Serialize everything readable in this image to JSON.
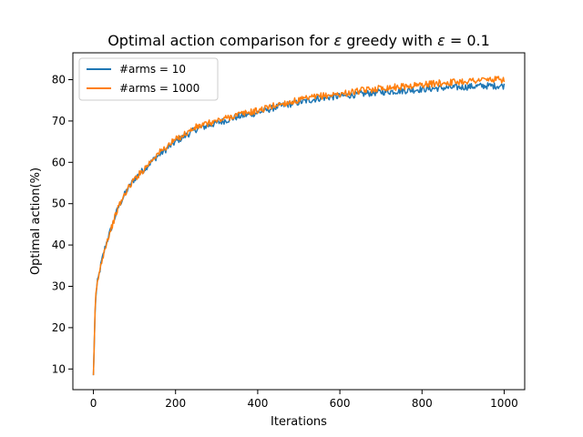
{
  "chart_data": {
    "type": "line",
    "title_prefix": "Optimal action comparison for ",
    "title_eps": "ε",
    "title_mid": " greedy with ",
    "title_eps2": "ε",
    "title_suffix": " = 0.1",
    "xlabel": "Iterations",
    "ylabel": "Optimal action(%)",
    "xlim": [
      -50,
      1050
    ],
    "ylim": [
      5.0,
      86.5
    ],
    "xticks": [
      0,
      200,
      400,
      600,
      800,
      1000
    ],
    "yticks": [
      10,
      20,
      30,
      40,
      50,
      60,
      70,
      80
    ],
    "legend_position": "top-left",
    "grid": false,
    "series": [
      {
        "name": "#arms = 10",
        "color": "#1f77b4",
        "x": [
          0,
          5,
          10,
          20,
          30,
          40,
          50,
          60,
          70,
          80,
          100,
          120,
          150,
          175,
          200,
          250,
          300,
          350,
          400,
          450,
          500,
          550,
          600,
          650,
          700,
          750,
          800,
          850,
          900,
          950,
          1000
        ],
        "values": [
          8.5,
          27,
          31,
          36,
          40,
          43,
          46,
          49,
          51,
          53,
          56,
          58,
          61,
          63,
          65,
          68,
          69.5,
          71,
          72,
          73.5,
          74.5,
          75.5,
          76,
          76.5,
          77,
          77.3,
          77.7,
          78,
          78.2,
          78.5,
          78.5
        ]
      },
      {
        "name": "#arms = 1000",
        "color": "#ff7f0e",
        "x": [
          0,
          5,
          10,
          20,
          30,
          40,
          50,
          60,
          70,
          80,
          100,
          120,
          150,
          175,
          200,
          250,
          300,
          350,
          400,
          450,
          500,
          550,
          600,
          650,
          700,
          750,
          800,
          850,
          900,
          950,
          1000
        ],
        "values": [
          8.5,
          27,
          31,
          36,
          40,
          43,
          46,
          49,
          51,
          53,
          56,
          58,
          61.5,
          63.5,
          65.5,
          68.5,
          70,
          71.5,
          72.5,
          74,
          75,
          76,
          76.5,
          77.3,
          78,
          78.3,
          78.8,
          79.2,
          79.6,
          80,
          80
        ]
      }
    ]
  }
}
